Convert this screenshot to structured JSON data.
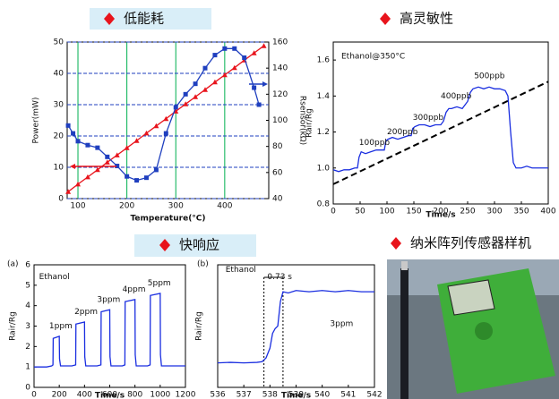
{
  "sections": [
    "低能耗",
    "高灵敏性",
    "快响应",
    "纳米阵列传感器样机"
  ],
  "chart_data": [
    {
      "type": "line",
      "xlabel": "Temperature(°C)",
      "ylabel": "Power(mW)",
      "y2label": "Rsensor(kΩ)",
      "xlim": [
        78,
        490
      ],
      "xticks": [
        100,
        200,
        300,
        400
      ],
      "ylim": [
        0,
        50
      ],
      "yticks": [
        0,
        10,
        20,
        30,
        40,
        50
      ],
      "y2lim": [
        40,
        160
      ],
      "y2ticks": [
        40,
        60,
        80,
        100,
        120,
        140,
        160
      ],
      "grid": true,
      "xgrid_color": "#00b050",
      "ygrid_color": "#1f3fbf",
      "series": [
        {
          "color": "#e8141c",
          "marker": "triangle",
          "x": [
            80,
            100,
            120,
            140,
            160,
            180,
            200,
            220,
            240,
            260,
            280,
            300,
            320,
            340,
            360,
            380,
            400,
            420,
            440,
            460,
            480
          ],
          "values": [
            2.2,
            4.6,
            6.9,
            9.2,
            11.6,
            13.9,
            16.2,
            18.5,
            20.9,
            23.2,
            25.5,
            27.9,
            30.2,
            32.5,
            34.8,
            37.2,
            39.5,
            41.8,
            44.2,
            46.5,
            48.8
          ]
        },
        {
          "color": "#1f3fbf",
          "marker": "square",
          "axis": "y2",
          "x": [
            80,
            90,
            100,
            120,
            140,
            160,
            180,
            200,
            220,
            240,
            260,
            280,
            300,
            320,
            340,
            360,
            380,
            400,
            420,
            440,
            460,
            470
          ],
          "values": [
            96,
            90,
            84,
            81,
            79,
            72,
            65,
            57,
            54,
            56,
            62,
            90,
            110,
            120,
            128,
            140,
            150,
            155,
            155,
            148,
            125,
            112
          ]
        }
      ]
    },
    {
      "type": "line",
      "xlabel": "Time/s",
      "ylabel": "Rair/Rg",
      "xlim": [
        0,
        400
      ],
      "xticks": [
        0,
        50,
        100,
        150,
        200,
        250,
        300,
        350,
        400
      ],
      "ylim": [
        0.8,
        1.7
      ],
      "yticks": [
        0.8,
        {
          "value": 1,
          "label": "1.0"
        },
        1.2,
        1.4,
        1.6
      ],
      "annotations": [
        "Ethanol@350°C",
        "100ppb",
        "200ppb",
        "300ppb",
        "400ppb",
        "500ppb"
      ],
      "trendline": {
        "x": [
          0,
          400
        ],
        "values": [
          0.91,
          1.48
        ]
      },
      "series": [
        {
          "color": "#1a2ee0",
          "x": [
            0,
            10,
            20,
            30,
            40,
            45,
            48,
            52,
            60,
            70,
            80,
            90,
            95,
            98,
            102,
            110,
            120,
            130,
            140,
            145,
            148,
            152,
            160,
            170,
            180,
            190,
            200,
            205,
            210,
            215,
            220,
            230,
            240,
            245,
            250,
            255,
            260,
            270,
            280,
            290,
            300,
            310,
            320,
            325,
            330,
            335,
            340,
            350,
            360,
            370,
            380,
            390,
            400
          ],
          "values": [
            0.99,
            0.98,
            0.99,
            0.99,
            1.0,
            1.0,
            1.06,
            1.09,
            1.08,
            1.09,
            1.1,
            1.1,
            1.1,
            1.15,
            1.16,
            1.17,
            1.16,
            1.17,
            1.18,
            1.18,
            1.22,
            1.23,
            1.24,
            1.24,
            1.23,
            1.24,
            1.24,
            1.26,
            1.31,
            1.33,
            1.33,
            1.34,
            1.33,
            1.35,
            1.37,
            1.42,
            1.44,
            1.45,
            1.44,
            1.45,
            1.44,
            1.44,
            1.43,
            1.4,
            1.2,
            1.03,
            1.0,
            1.0,
            1.01,
            1.0,
            1.0,
            1.0,
            1.0
          ]
        }
      ]
    },
    {
      "type": "line",
      "panel": "(a)",
      "xlabel": "Time/s",
      "ylabel": "Rair/Rg",
      "xlim": [
        0,
        1200
      ],
      "xticks": [
        0,
        200,
        400,
        600,
        800,
        1000,
        1200
      ],
      "ylim": [
        0,
        6
      ],
      "yticks": [
        0,
        1,
        2,
        3,
        4,
        5,
        6
      ],
      "annotations": [
        "Ethanol",
        "1ppm",
        "2ppm",
        "3ppm",
        "4ppm",
        "5ppm"
      ],
      "series": [
        {
          "color": "#1a2ee0",
          "x": [
            0,
            100,
            140,
            150,
            152,
            200,
            202,
            210,
            300,
            330,
            332,
            400,
            402,
            410,
            500,
            530,
            532,
            600,
            602,
            610,
            700,
            720,
            722,
            800,
            802,
            810,
            900,
            920,
            922,
            1000,
            1002,
            1010,
            1100,
            1200
          ],
          "values": [
            1.0,
            1.0,
            1.05,
            1.1,
            2.4,
            2.5,
            1.4,
            1.05,
            1.05,
            1.1,
            3.1,
            3.2,
            1.5,
            1.05,
            1.05,
            1.1,
            3.7,
            3.8,
            1.5,
            1.05,
            1.05,
            1.1,
            4.2,
            4.3,
            1.6,
            1.05,
            1.05,
            1.1,
            4.5,
            4.6,
            1.6,
            1.05,
            1.05,
            1.05
          ]
        }
      ]
    },
    {
      "type": "line",
      "panel": "(b)",
      "xlabel": "Time/s",
      "ylabel": "Rair/Rg",
      "xlim": [
        536,
        542
      ],
      "xticks": [
        536,
        537,
        538,
        539,
        540,
        541,
        542
      ],
      "ylim": [
        0,
        5
      ],
      "annotations": [
        "Ethanol",
        "0.73 s",
        "3ppm"
      ],
      "response_interval": [
        537.77,
        538.5
      ],
      "series": [
        {
          "color": "#1a2ee0",
          "x": [
            536,
            536.5,
            537,
            537.5,
            537.7,
            537.85,
            538,
            538.1,
            538.2,
            538.3,
            538.4,
            538.5,
            538.7,
            539,
            539.5,
            540,
            540.5,
            541,
            541.5,
            542
          ],
          "values": [
            1.0,
            1.02,
            1.0,
            1.02,
            1.05,
            1.2,
            1.6,
            2.2,
            2.4,
            2.5,
            3.5,
            3.9,
            3.85,
            3.95,
            3.9,
            3.95,
            3.9,
            3.95,
            3.9,
            3.9
          ]
        }
      ]
    }
  ]
}
